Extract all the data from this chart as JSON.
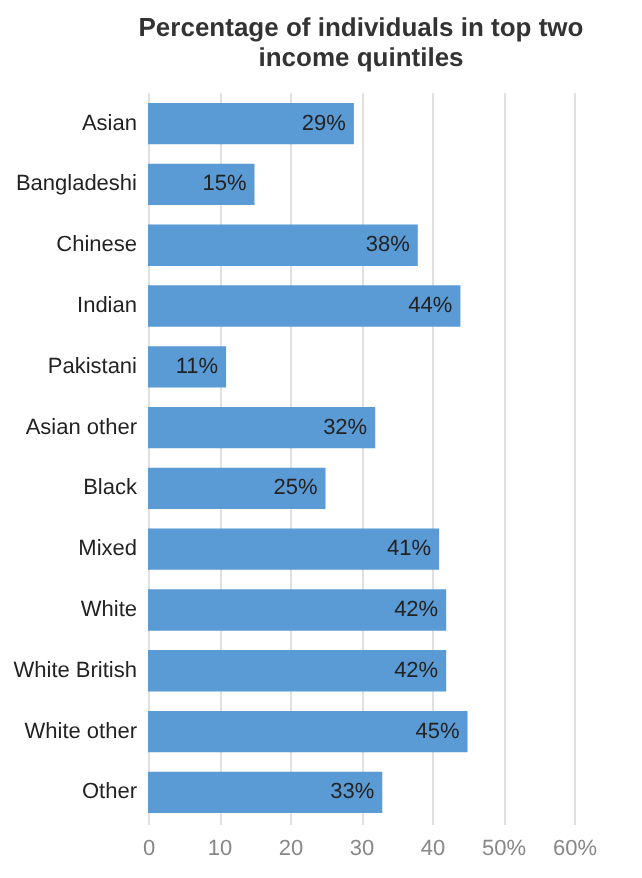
{
  "chart_data": {
    "type": "bar",
    "orientation": "horizontal",
    "title": "Percentage of individuals in top two income quintiles",
    "categories": [
      "Asian",
      "Bangladeshi",
      "Chinese",
      "Indian",
      "Pakistani",
      "Asian other",
      "Black",
      "Mixed",
      "White",
      "White British",
      "White other",
      "Other"
    ],
    "values": [
      29,
      15,
      38,
      44,
      11,
      32,
      25,
      41,
      42,
      42,
      45,
      33
    ],
    "value_labels": [
      "29%",
      "15%",
      "38%",
      "44%",
      "11%",
      "32%",
      "25%",
      "41%",
      "42%",
      "42%",
      "45%",
      "33%"
    ],
    "color": "#5b9bd5",
    "xlim": [
      0,
      60
    ],
    "xticks": [
      0,
      10,
      20,
      30,
      40,
      {
        "value": 50,
        "label": "50%"
      },
      {
        "value": 60,
        "label": "60%"
      }
    ],
    "grid": "x"
  }
}
